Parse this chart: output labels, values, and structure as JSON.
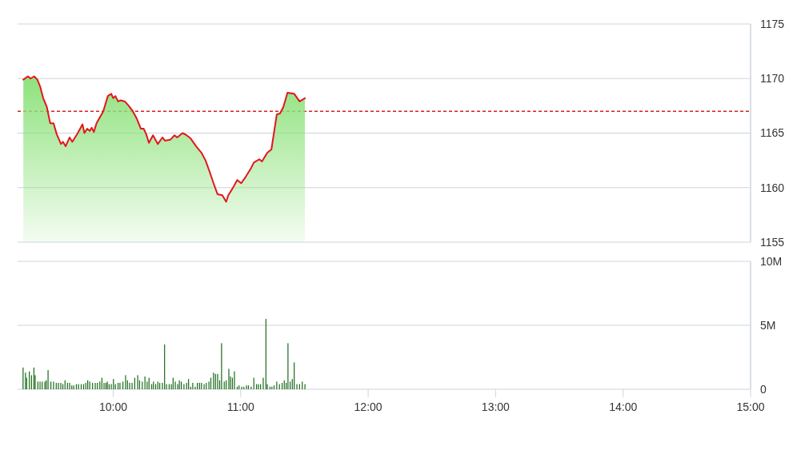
{
  "chart_data": [
    {
      "type": "area",
      "color": "#8ee27c",
      "x": [
        9.295,
        9.331,
        9.352,
        9.38,
        9.405,
        9.426,
        9.451,
        9.479,
        9.506,
        9.532,
        9.557,
        9.59,
        9.606,
        9.627,
        9.658,
        9.679,
        9.722,
        9.759,
        9.774,
        9.796,
        9.816,
        9.831,
        9.848,
        9.869,
        9.922,
        9.958,
        9.985,
        10.0,
        10.017,
        10.038,
        10.059,
        10.091,
        10.122,
        10.154,
        10.186,
        10.217,
        10.239,
        10.259,
        10.28,
        10.312,
        10.35,
        10.386,
        10.407,
        10.449,
        10.481,
        10.502,
        10.544,
        10.576,
        10.608,
        10.65,
        10.692,
        10.724,
        10.755,
        10.787,
        10.818,
        10.856,
        10.886,
        10.903,
        10.935,
        10.973,
        11.004,
        11.04,
        11.082,
        11.103,
        11.146,
        11.167,
        11.209,
        11.241,
        11.262,
        11.283,
        11.308,
        11.335,
        11.367,
        11.42,
        11.462,
        11.504
      ],
      "series": [
        {
          "color": "#e3161b",
          "values": [
            1169.9,
            1170.2,
            1170.0,
            1170.2,
            1169.9,
            1169.3,
            1168.2,
            1167.4,
            1165.9,
            1165.9,
            1164.9,
            1164.0,
            1164.2,
            1163.8,
            1164.6,
            1164.2,
            1165.0,
            1165.8,
            1165.0,
            1165.4,
            1165.2,
            1165.5,
            1165.1,
            1165.9,
            1167.0,
            1168.4,
            1168.6,
            1168.2,
            1168.4,
            1167.9,
            1168.0,
            1167.9,
            1167.5,
            1167.0,
            1166.3,
            1165.4,
            1165.4,
            1164.9,
            1164.1,
            1164.8,
            1164.0,
            1164.6,
            1164.3,
            1164.4,
            1164.8,
            1164.6,
            1165.0,
            1164.8,
            1164.5,
            1163.8,
            1163.2,
            1162.5,
            1161.5,
            1160.4,
            1159.4,
            1159.3,
            1158.7,
            1159.3,
            1159.9,
            1160.7,
            1160.4,
            1161.0,
            1161.8,
            1162.3,
            1162.6,
            1162.4,
            1163.2,
            1163.5,
            1165.1,
            1166.7,
            1166.8,
            1167.4,
            1168.7,
            1168.6,
            1167.9,
            1168.2
          ]
        }
      ],
      "xlim": [
        9.25,
        15
      ],
      "ylim": [
        1155,
        1175
      ],
      "yticks": [
        1155,
        1160,
        1165,
        1170,
        1175
      ],
      "ref_lines": [
        {
          "axis": "y",
          "value": 1167,
          "color": "#d62020",
          "line_style": "dashed"
        }
      ],
      "grid": "y",
      "tick_labels": "y",
      "line_style": "solid",
      "marker": "none"
    },
    {
      "type": "bar",
      "color": "#1a6b1a",
      "x": [
        9.293,
        9.312,
        9.321,
        9.342,
        9.359,
        9.378,
        9.388,
        9.409,
        9.426,
        9.443,
        9.464,
        9.475,
        9.489,
        9.511,
        9.532,
        9.553,
        9.57,
        9.589,
        9.605,
        9.622,
        9.641,
        9.658,
        9.675,
        9.69,
        9.711,
        9.728,
        9.749,
        9.768,
        9.785,
        9.8,
        9.816,
        9.838,
        9.859,
        9.876,
        9.895,
        9.911,
        9.928,
        9.943,
        9.954,
        9.968,
        9.985,
        10.002,
        10.017,
        10.038,
        10.053,
        10.076,
        10.097,
        10.112,
        10.129,
        10.148,
        10.169,
        10.192,
        10.207,
        10.228,
        10.249,
        10.266,
        10.281,
        10.302,
        10.316,
        10.333,
        10.35,
        10.365,
        10.386,
        10.403,
        10.418,
        10.439,
        10.456,
        10.47,
        10.487,
        10.506,
        10.519,
        10.534,
        10.555,
        10.576,
        10.591,
        10.608,
        10.624,
        10.643,
        10.66,
        10.677,
        10.692,
        10.713,
        10.73,
        10.751,
        10.766,
        10.787,
        10.802,
        10.819,
        10.835,
        10.85,
        10.871,
        10.886,
        10.907,
        10.92,
        10.935,
        10.951,
        10.973,
        10.987,
        11.008,
        11.025,
        11.046,
        11.061,
        11.082,
        11.103,
        11.124,
        11.139,
        11.156,
        11.177,
        11.198,
        11.209,
        11.23,
        11.245,
        11.262,
        11.283,
        11.304,
        11.325,
        11.342,
        11.357,
        11.371,
        11.388,
        11.405,
        11.42,
        11.441,
        11.462,
        11.483,
        11.504
      ],
      "values": [
        1.7,
        1.3,
        0.9,
        1.4,
        1.1,
        1.7,
        1.1,
        0.6,
        0.6,
        0.6,
        0.6,
        0.7,
        1.5,
        0.6,
        0.6,
        0.5,
        0.5,
        0.5,
        0.4,
        0.7,
        0.5,
        0.5,
        0.3,
        0.3,
        0.4,
        0.4,
        0.4,
        0.4,
        0.5,
        0.7,
        0.6,
        0.5,
        0.5,
        0.5,
        0.6,
        0.9,
        0.5,
        0.5,
        0.6,
        0.4,
        0.4,
        0.8,
        0.4,
        0.5,
        0.5,
        0.6,
        1.1,
        0.7,
        0.5,
        0.5,
        0.9,
        1.1,
        0.7,
        0.6,
        1.0,
        0.6,
        0.9,
        0.4,
        0.6,
        0.4,
        0.6,
        0.5,
        0.5,
        3.5,
        0.4,
        0.4,
        0.4,
        0.9,
        0.6,
        0.4,
        0.7,
        0.6,
        0.4,
        0.5,
        0.8,
        0.2,
        0.5,
        0.2,
        0.5,
        0.5,
        0.5,
        0.4,
        0.5,
        0.6,
        0.9,
        1.3,
        1.2,
        1.2,
        0.7,
        3.6,
        0.6,
        0.7,
        1.6,
        1.0,
        0.9,
        1.4,
        0.2,
        0.3,
        0.2,
        0.2,
        0.3,
        0.3,
        0.2,
        0.9,
        0.4,
        0.4,
        0.4,
        0.9,
        5.5,
        0.4,
        0.2,
        0.2,
        0.3,
        0.6,
        0.4,
        0.5,
        0.7,
        0.5,
        3.6,
        0.6,
        0.8,
        2.1,
        0.4,
        0.4,
        0.6,
        0.4
      ],
      "xlim": [
        9.25,
        15
      ],
      "xticks": [
        {
          "value": 10,
          "label": "10:00"
        },
        {
          "value": 11,
          "label": "11:00"
        },
        {
          "value": 12,
          "label": "12:00"
        },
        {
          "value": 13,
          "label": "13:00"
        },
        {
          "value": 14,
          "label": "14:00"
        },
        {
          "value": 15,
          "label": "15:00"
        }
      ],
      "ylim": [
        0,
        10
      ],
      "yticks": [
        {
          "value": 0,
          "label": "0"
        },
        {
          "value": 5,
          "label": "5M"
        },
        {
          "value": 10,
          "label": "10M"
        }
      ],
      "grid": "y"
    }
  ]
}
